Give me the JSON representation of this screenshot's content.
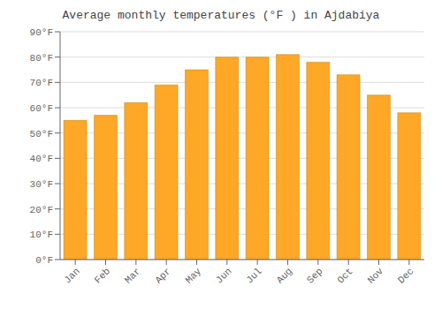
{
  "chart_data": {
    "type": "bar",
    "title": "Average monthly temperatures (°F ) in Ajdabiya",
    "categories": [
      "Jan",
      "Feb",
      "Mar",
      "Apr",
      "May",
      "Jun",
      "Jul",
      "Aug",
      "Sep",
      "Oct",
      "Nov",
      "Dec"
    ],
    "values": [
      55,
      57,
      62,
      69,
      75,
      80,
      80,
      81,
      78,
      73,
      65,
      58
    ],
    "color": "#FFA726",
    "ylim": [
      0,
      90
    ],
    "yticks": [
      {
        "value": 0,
        "label": "0°F"
      },
      {
        "value": 10,
        "label": "10°F"
      },
      {
        "value": 20,
        "label": "20°F"
      },
      {
        "value": 30,
        "label": "30°F"
      },
      {
        "value": 40,
        "label": "40°F"
      },
      {
        "value": 50,
        "label": "50°F"
      },
      {
        "value": 60,
        "label": "60°F"
      },
      {
        "value": 70,
        "label": "70°F"
      },
      {
        "value": 80,
        "label": "80°F"
      },
      {
        "value": 90,
        "label": "90°F"
      }
    ],
    "grid": true
  }
}
